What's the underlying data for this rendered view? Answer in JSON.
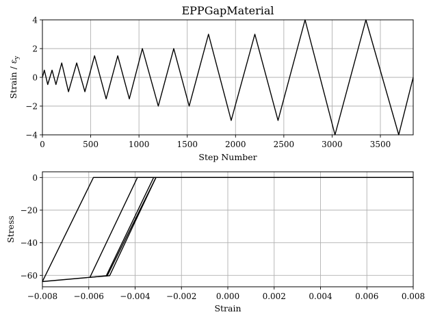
{
  "chart_data": [
    {
      "type": "line",
      "title": "EPPGapMaterial",
      "xlabel": "Step Number",
      "ylabel": "Strain / ε",
      "ylabel_sub": "y",
      "xlim": [
        0,
        3840
      ],
      "ylim": [
        -4,
        4
      ],
      "xticks": [
        0,
        500,
        1000,
        1500,
        2000,
        2500,
        3000,
        3500
      ],
      "xtick_labels": [
        "0",
        "500",
        "1000",
        "1500",
        "2000",
        "2500",
        "3000",
        "3500"
      ],
      "yticks": [
        -4,
        -2,
        0,
        2,
        4
      ],
      "ytick_labels": [
        "−4",
        "−2",
        "0",
        "2",
        "4"
      ],
      "grid": true,
      "series": [
        {
          "color": "#000000",
          "x": [
            0,
            20,
            55,
            100,
            140,
            200,
            270,
            355,
            440,
            540,
            660,
            780,
            900,
            1035,
            1200,
            1360,
            1520,
            1720,
            1955,
            2200,
            2440,
            2720,
            3030,
            3350,
            3690,
            3840
          ],
          "y": [
            0,
            0.5,
            -0.5,
            0.5,
            -0.5,
            1,
            -1,
            1,
            -1,
            1.5,
            -1.5,
            1.5,
            -1.5,
            2,
            -2,
            2,
            -2,
            3,
            -3,
            3,
            -3,
            4,
            -4,
            4,
            -4,
            0
          ]
        }
      ]
    },
    {
      "type": "line",
      "title": "",
      "xlabel": "Strain",
      "ylabel": "Stress",
      "xlim": [
        -0.008,
        0.008
      ],
      "ylim": [
        -67,
        3.5
      ],
      "xticks": [
        -0.008,
        -0.006,
        -0.004,
        -0.002,
        0.0,
        0.002,
        0.004,
        0.006,
        0.008
      ],
      "xtick_labels": [
        "−0.008",
        "−0.006",
        "−0.004",
        "−0.002",
        "0.000",
        "0.002",
        "0.004",
        "0.006",
        "0.008"
      ],
      "yticks": [
        -60,
        -40,
        -20,
        0
      ],
      "ytick_labels": [
        "−60",
        "−40",
        "−20",
        "0"
      ],
      "grid": true,
      "series": [
        {
          "color": "#000000",
          "x": [
            0.008,
            -0.0031,
            -0.0052,
            -0.00595,
            -0.008,
            -0.0058,
            0.008
          ],
          "y": [
            0,
            0,
            -60.2,
            -61.2,
            -63.8,
            0,
            0
          ]
        },
        {
          "color": "#000000",
          "x": [
            -0.0031,
            -0.0051,
            -0.00595,
            -0.0039,
            0.008
          ],
          "y": [
            0,
            -60.2,
            -61.2,
            0,
            0
          ]
        },
        {
          "color": "#000000",
          "x": [
            -0.0032,
            -0.00525,
            -0.00525,
            -0.0032
          ],
          "y": [
            0,
            -60.4,
            -60.4,
            0
          ]
        }
      ]
    }
  ]
}
